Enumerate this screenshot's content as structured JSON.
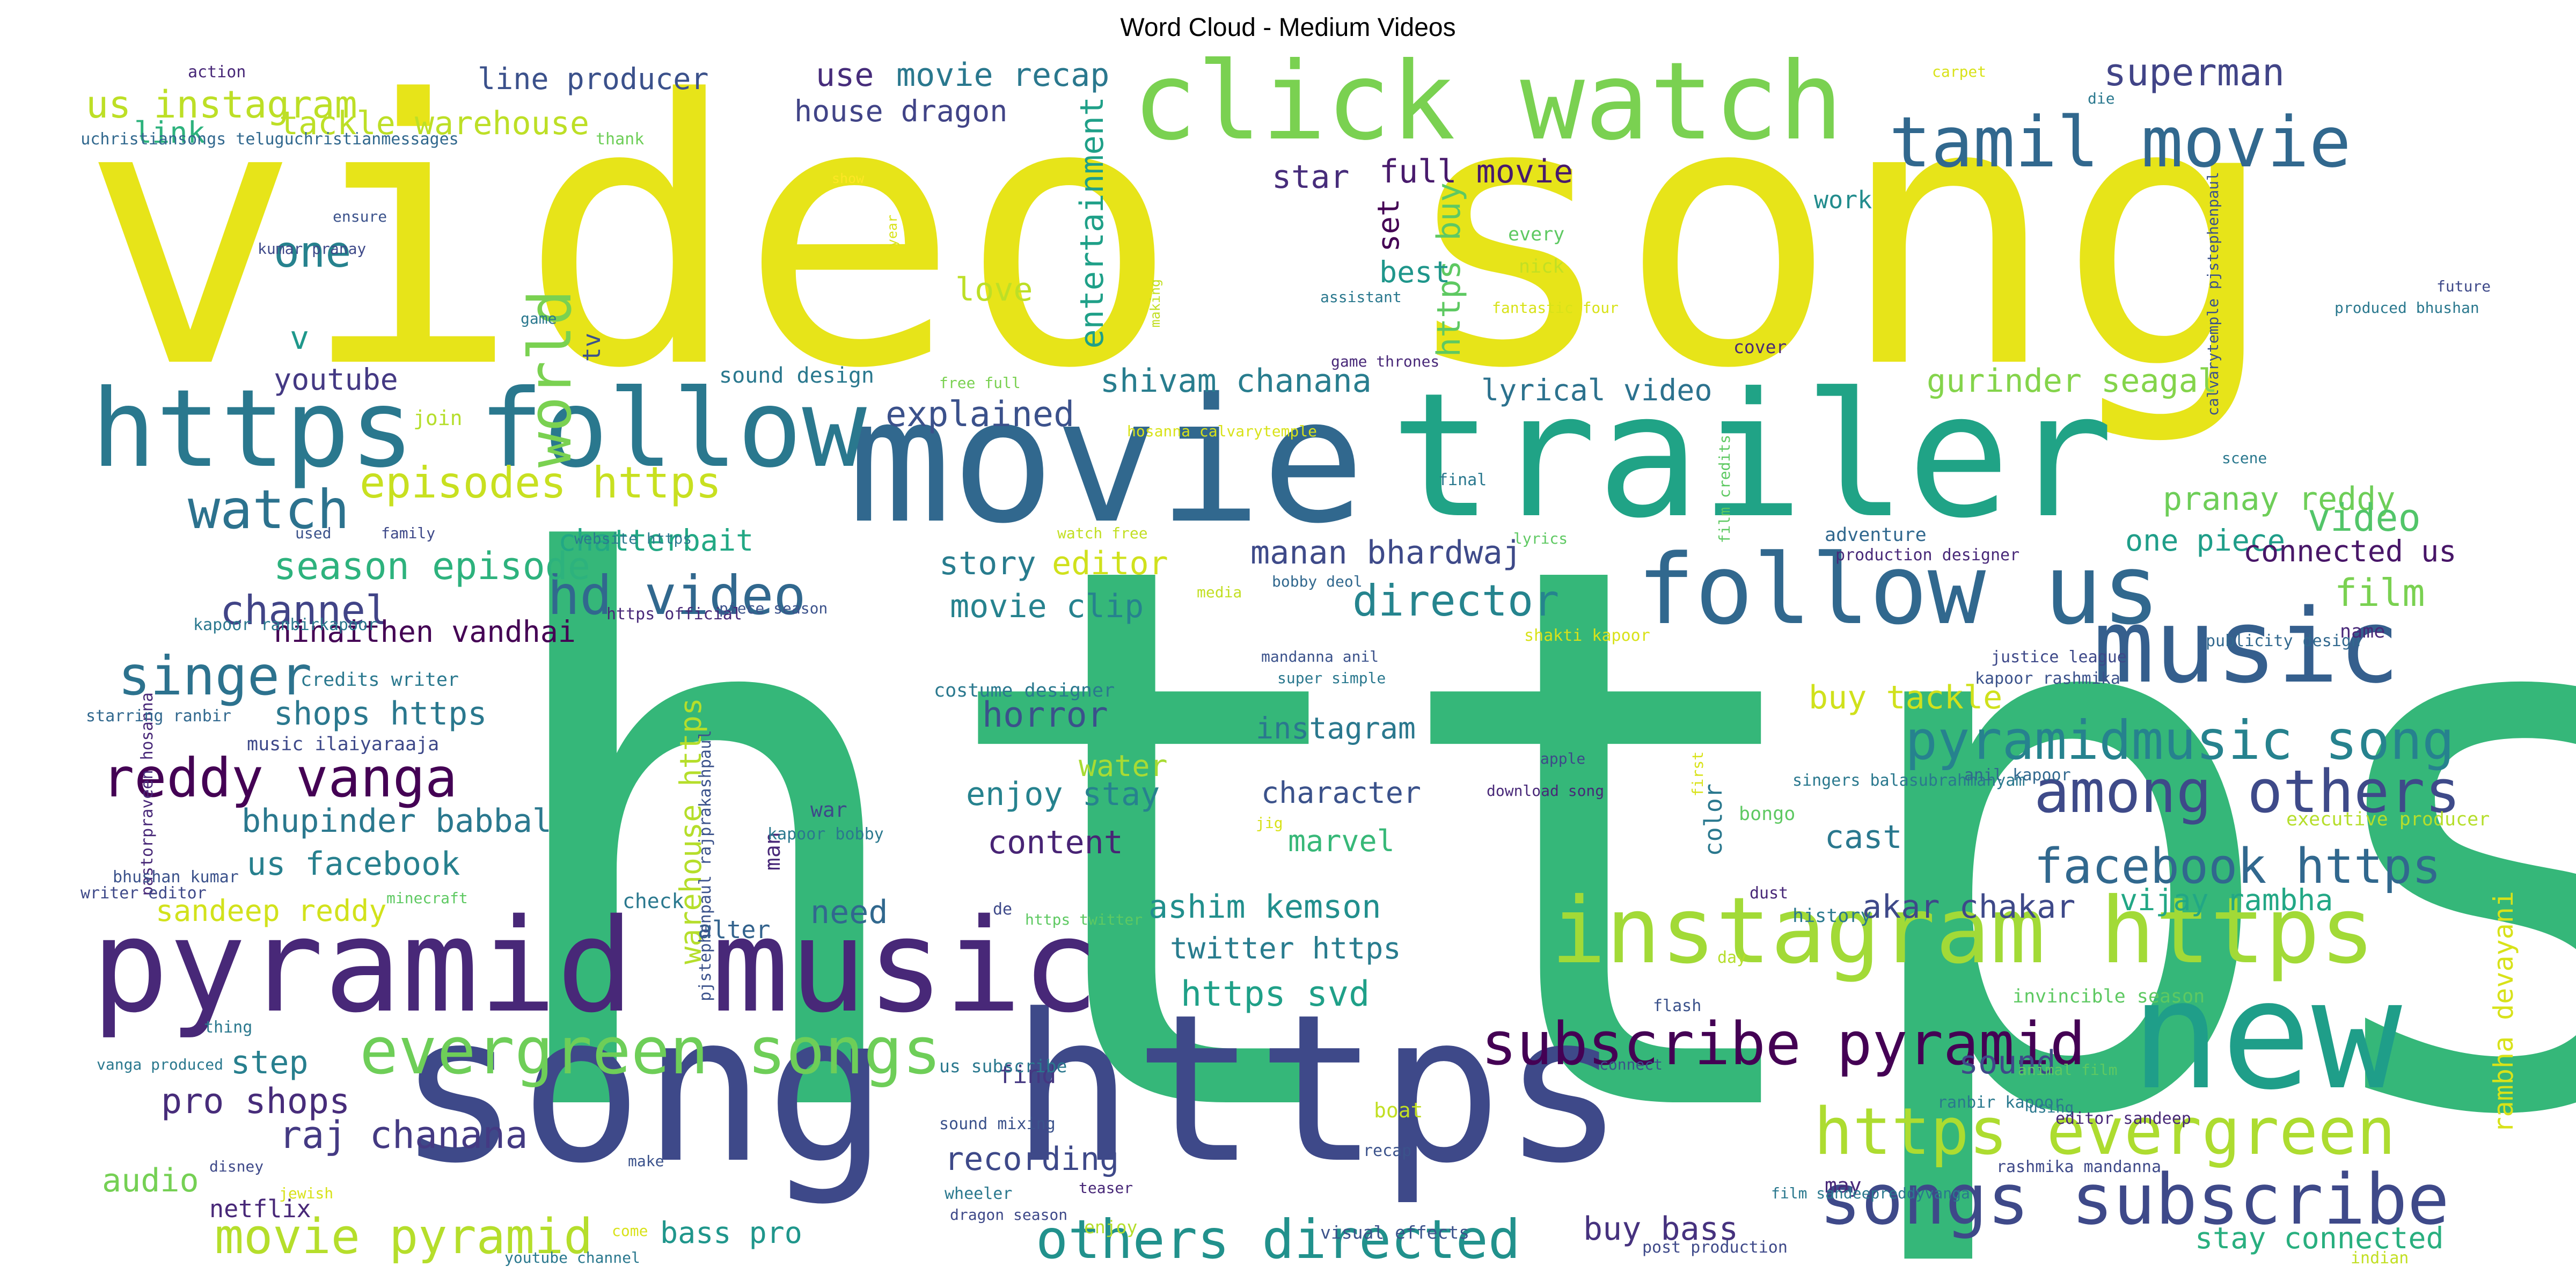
{
  "title": "Word Cloud - Medium Videos",
  "words": [
    {
      "t": "video song",
      "c": "#e7e419"
    },
    {
      "t": "https",
      "c": "#35b779"
    },
    {
      "t": "movie",
      "c": "#31688e"
    },
    {
      "t": "trailer",
      "c": "#20a386"
    },
    {
      "t": "song https",
      "c": "#3e4989"
    },
    {
      "t": "https follow",
      "c": "#2a788e"
    },
    {
      "t": "pyramid music",
      "c": "#482878"
    },
    {
      "t": "click watch",
      "c": "#7ad151"
    },
    {
      "t": "new",
      "c": "#1f9e89"
    },
    {
      "t": "follow us",
      "c": "#31688e"
    },
    {
      "t": "instagram https",
      "c": "#a2da37"
    },
    {
      "t": "music",
      "c": "#355f8d"
    },
    {
      "t": "tamil movie",
      "c": "#31688e"
    },
    {
      "t": "songs subscribe",
      "c": "#3e4989"
    },
    {
      "t": "evergreen songs",
      "c": "#6ece58"
    },
    {
      "t": "https evergreen",
      "c": "#addc30"
    },
    {
      "t": "subscribe pyramid",
      "c": "#440154"
    },
    {
      "t": "among others",
      "c": "#3e4a89"
    },
    {
      "t": "pyramidmusic song",
      "c": "#26828e"
    },
    {
      "t": "reddy vanga",
      "c": "#440154"
    },
    {
      "t": "others directed",
      "c": "#21918c"
    },
    {
      "t": "facebook https",
      "c": "#31688e"
    },
    {
      "t": "movie pyramid",
      "c": "#b5de2b"
    },
    {
      "t": "hd video",
      "c": "#31688e"
    },
    {
      "t": "episodes https",
      "c": "#c8e020"
    },
    {
      "t": "watch",
      "c": "#2c728e"
    },
    {
      "t": "singer",
      "c": "#2c728e"
    },
    {
      "t": "raj chanana",
      "c": "#443a83"
    },
    {
      "t": "director",
      "c": "#25848e"
    },
    {
      "t": "us instagram",
      "c": "#bddf26"
    },
    {
      "t": "tackle warehouse",
      "c": "#bddf26"
    },
    {
      "t": "line producer",
      "c": "#3b518b"
    },
    {
      "t": "use",
      "c": "#472d7b"
    },
    {
      "t": "movie recap",
      "c": "#2a788e"
    },
    {
      "t": "house dragon",
      "c": "#414487"
    },
    {
      "t": "superman",
      "c": "#414487"
    },
    {
      "t": "one",
      "c": "#26828e"
    },
    {
      "t": "world",
      "c": "#7ad151"
    },
    {
      "t": "entertainment",
      "c": "#1fa088"
    },
    {
      "t": "star",
      "c": "#472d7b"
    },
    {
      "t": "full movie",
      "c": "#481a6c"
    },
    {
      "t": "https buy",
      "c": "#5ec962"
    },
    {
      "t": "set",
      "c": "#440154"
    },
    {
      "t": "best",
      "c": "#1f968b"
    },
    {
      "t": "love",
      "c": "#bddf26"
    },
    {
      "t": "shivam chanana",
      "c": "#287d8e"
    },
    {
      "t": "lyrical video",
      "c": "#2c728e"
    },
    {
      "t": "gurinder seagal",
      "c": "#84d44b"
    },
    {
      "t": "explained",
      "c": "#3b518b"
    },
    {
      "t": "youtube",
      "c": "#443983"
    },
    {
      "t": "season episode",
      "c": "#2db27d"
    },
    {
      "t": "chatterbait",
      "c": "#22a884"
    },
    {
      "t": "channel",
      "c": "#414487"
    },
    {
      "t": "ninaithen vandhai",
      "c": "#440154"
    },
    {
      "t": "story",
      "c": "#287c8e"
    },
    {
      "t": "editor",
      "c": "#d0e11c"
    },
    {
      "t": "manan bhardwaj",
      "c": "#3e4a89"
    },
    {
      "t": "movie clip",
      "c": "#26828e"
    },
    {
      "t": "pranay reddy",
      "c": "#6ece58"
    },
    {
      "t": "one piece",
      "c": "#1f9e89"
    },
    {
      "t": "video",
      "c": "#52c569"
    },
    {
      "t": "connected us",
      "c": "#481668"
    },
    {
      "t": "film",
      "c": "#7ad151"
    },
    {
      "t": "shops https",
      "c": "#2a788e"
    },
    {
      "t": "horror",
      "c": "#3b518b"
    },
    {
      "t": "instagram",
      "c": "#2a788e"
    },
    {
      "t": "buy tackle",
      "c": "#d0e11c"
    },
    {
      "t": "bhupinder babbal",
      "c": "#2a788e"
    },
    {
      "t": "water",
      "c": "#a8db34"
    },
    {
      "t": "enjoy stay",
      "c": "#26828e"
    },
    {
      "t": "character",
      "c": "#3b528b"
    },
    {
      "t": "content",
      "c": "#482475"
    },
    {
      "t": "marvel",
      "c": "#37b878"
    },
    {
      "t": "cast",
      "c": "#2a788e"
    },
    {
      "t": "us facebook",
      "c": "#27808e"
    },
    {
      "t": "sandeep reddy",
      "c": "#d2e21b"
    },
    {
      "t": "warehouse https",
      "c": "#b5de2b"
    },
    {
      "t": "need",
      "c": "#31688e"
    },
    {
      "t": "ashim kemson",
      "c": "#218f8d"
    },
    {
      "t": "twitter https",
      "c": "#287c8e"
    },
    {
      "t": "https svd",
      "c": "#1fa088"
    },
    {
      "t": "akar chakar",
      "c": "#3e4989"
    },
    {
      "t": "vijay rambha",
      "c": "#22a785"
    },
    {
      "t": "rambha devayani",
      "c": "#d8e219"
    },
    {
      "t": "step",
      "c": "#277f8e"
    },
    {
      "t": "pro shops",
      "c": "#472c7a"
    },
    {
      "t": "audio",
      "c": "#75d054"
    },
    {
      "t": "recording",
      "c": "#3e4989"
    },
    {
      "t": "bass pro",
      "c": "#1f968b"
    },
    {
      "t": "buy bass",
      "c": "#46327e"
    },
    {
      "t": "stay connected",
      "c": "#29af7f"
    },
    {
      "t": "sound",
      "c": "#3e4989"
    },
    {
      "t": "netflix",
      "c": "#482878"
    },
    {
      "t": "alter",
      "c": "#33638d"
    },
    {
      "t": "find",
      "c": "#453781"
    },
    {
      "t": "color",
      "c": "#2a788e"
    },
    {
      "t": "tv",
      "c": "#3b528b"
    },
    {
      "t": "v",
      "c": "#1f988b"
    },
    {
      "t": "link",
      "c": "#2db27d"
    },
    {
      "t": "work",
      "c": "#228c8d"
    },
    {
      "t": "sound design",
      "c": "#2a788e"
    },
    {
      "t": "action",
      "c": "#482878"
    },
    {
      "t": "teluguchristiansongs teluguchristianmessages",
      "c": "#31688e"
    },
    {
      "t": "thank",
      "c": "#6ece58"
    },
    {
      "t": "ensure",
      "c": "#3b528b"
    },
    {
      "t": "kumar pranay",
      "c": "#3e4989"
    },
    {
      "t": "game",
      "c": "#2a788e"
    },
    {
      "t": "show",
      "c": "#fde725"
    },
    {
      "t": "year",
      "c": "#d8e219"
    },
    {
      "t": "making",
      "c": "#c2df23"
    },
    {
      "t": "carpet",
      "c": "#d8e219"
    },
    {
      "t": "die",
      "c": "#2a788e"
    },
    {
      "t": "calvarytemple pjstephenpaul",
      "c": "#3b528b"
    },
    {
      "t": "future",
      "c": "#3e4989"
    },
    {
      "t": "produced bhushan",
      "c": "#2a788e"
    },
    {
      "t": "every",
      "c": "#5ec962"
    },
    {
      "t": "nick",
      "c": "#c2df23"
    },
    {
      "t": "fantastic four",
      "c": "#d8e219"
    },
    {
      "t": "assistant",
      "c": "#2a788e"
    },
    {
      "t": "game thrones",
      "c": "#482878"
    },
    {
      "t": "cover",
      "c": "#482878"
    },
    {
      "t": "free full",
      "c": "#7ad151"
    },
    {
      "t": "join",
      "c": "#b5de2b"
    },
    {
      "t": "hosanna calvarytemple",
      "c": "#d8e219"
    },
    {
      "t": "final",
      "c": "#2a788e"
    },
    {
      "t": "film credits",
      "c": "#5ec962"
    },
    {
      "t": "scene",
      "c": "#2a788e"
    },
    {
      "t": "adventure",
      "c": "#31688e"
    },
    {
      "t": "production designer",
      "c": "#482878"
    },
    {
      "t": "lyrics",
      "c": "#5ec962"
    },
    {
      "t": "watch free",
      "c": "#c2df23"
    },
    {
      "t": "media",
      "c": "#c2df23"
    },
    {
      "t": "bobby deol",
      "c": "#31688e"
    },
    {
      "t": "shakti kapoor",
      "c": "#d8e219"
    },
    {
      "t": "publicity design",
      "c": "#31688e"
    },
    {
      "t": "name",
      "c": "#482878"
    },
    {
      "t": "justice league",
      "c": "#3e4989"
    },
    {
      "t": "kapoor rashmika",
      "c": "#3b528b"
    },
    {
      "t": "pastorpraveen hosanna",
      "c": "#482878"
    },
    {
      "t": "used",
      "c": "#3b528b"
    },
    {
      "t": "family",
      "c": "#3e4989"
    },
    {
      "t": "website https",
      "c": "#2a788e"
    },
    {
      "t": "kapoor ranbirkapoor",
      "c": "#2a788e"
    },
    {
      "t": "https official",
      "c": "#482878"
    },
    {
      "t": "piece season",
      "c": "#3b528b"
    },
    {
      "t": "mandanna anil",
      "c": "#3b528b"
    },
    {
      "t": "super simple",
      "c": "#2a788e"
    },
    {
      "t": "credits writer",
      "c": "#2a788e"
    },
    {
      "t": "starring ranbir",
      "c": "#31688e"
    },
    {
      "t": "music ilaiyaraaja",
      "c": "#3e4989"
    },
    {
      "t": "costume designer",
      "c": "#2a788e"
    },
    {
      "t": "pjstephenpaul rajprakashpaul",
      "c": "#3b528b"
    },
    {
      "t": "apple",
      "c": "#3e4989"
    },
    {
      "t": "download song",
      "c": "#482878"
    },
    {
      "t": "first",
      "c": "#d8e219"
    },
    {
      "t": "singers balasubrahmanyam",
      "c": "#2a788e"
    },
    {
      "t": "anil kapoor",
      "c": "#31688e"
    },
    {
      "t": "executive producer",
      "c": "#b5de2b"
    },
    {
      "t": "bongo",
      "c": "#5ec962"
    },
    {
      "t": "jig",
      "c": "#d8e219"
    },
    {
      "t": "war",
      "c": "#3e4989"
    },
    {
      "t": "man",
      "c": "#482878"
    },
    {
      "t": "kapoor bobby",
      "c": "#2a788e"
    },
    {
      "t": "bhushan kumar",
      "c": "#3b528b"
    },
    {
      "t": "writer editor",
      "c": "#3e4989"
    },
    {
      "t": "minecraft",
      "c": "#5ec962"
    },
    {
      "t": "dust",
      "c": "#482878"
    },
    {
      "t": "history",
      "c": "#2a788e"
    },
    {
      "t": "check",
      "c": "#2a788e"
    },
    {
      "t": "de",
      "c": "#3e4989"
    },
    {
      "t": "https twitter",
      "c": "#5ec962"
    },
    {
      "t": "day",
      "c": "#b5de2b"
    },
    {
      "t": "flash",
      "c": "#3b528b"
    },
    {
      "t": "invincible season",
      "c": "#5ec962"
    },
    {
      "t": "thing",
      "c": "#2a788e"
    },
    {
      "t": "vanga produced",
      "c": "#2a788e"
    },
    {
      "t": "us subscribe",
      "c": "#2a788e"
    },
    {
      "t": "connect",
      "c": "#3b528b"
    },
    {
      "t": "animal film",
      "c": "#5ec962"
    },
    {
      "t": "boat",
      "c": "#c2df23"
    },
    {
      "t": "ranbir kapoor",
      "c": "#2a788e"
    },
    {
      "t": "using",
      "c": "#2a788e"
    },
    {
      "t": "editor sandeep",
      "c": "#482878"
    },
    {
      "t": "sound mixing",
      "c": "#3b528b"
    },
    {
      "t": "disney",
      "c": "#3e4989"
    },
    {
      "t": "make",
      "c": "#3b528b"
    },
    {
      "t": "jewish",
      "c": "#d8e219"
    },
    {
      "t": "recap",
      "c": "#3b528b"
    },
    {
      "t": "rashmika mandanna",
      "c": "#3e4989"
    },
    {
      "t": "may",
      "c": "#482878"
    },
    {
      "t": "film sandeepreddyvanga",
      "c": "#2a788e"
    },
    {
      "t": "wheeler",
      "c": "#2a788e"
    },
    {
      "t": "teaser",
      "c": "#482878"
    },
    {
      "t": "dragon season",
      "c": "#3e4989"
    },
    {
      "t": "come",
      "c": "#d8e219"
    },
    {
      "t": "enjoy",
      "c": "#b5de2b"
    },
    {
      "t": "visual effects",
      "c": "#3b528b"
    },
    {
      "t": "youtube channel",
      "c": "#2a788e"
    },
    {
      "t": "post production",
      "c": "#3e4989"
    },
    {
      "t": "indian",
      "c": "#c2df23"
    }
  ]
}
